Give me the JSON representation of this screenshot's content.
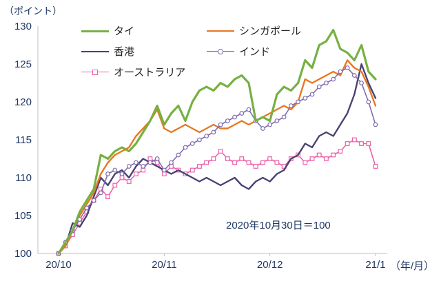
{
  "chart_data": {
    "type": "line",
    "title": "",
    "y_unit_label": "（ポイント）",
    "x_unit_label": "（年/月）",
    "annotation": "2020年10月30日＝100",
    "ylim": [
      100,
      130
    ],
    "yticks": [
      100,
      105,
      110,
      115,
      120,
      125,
      130
    ],
    "x_tick_labels": [
      "20/10",
      "20/11",
      "20/12",
      "21/1"
    ],
    "x_tick_positions": [
      0,
      15,
      30,
      45
    ],
    "n_points": 46,
    "grid": false,
    "legend_position": "top-inside",
    "colors": {
      "axis_text": "#1F3864",
      "axis_line": "#BFBFBF",
      "background": "#FFFFFF",
      "legend_text": "#222222"
    },
    "series": [
      {
        "name": "タイ",
        "color": "#76B043",
        "marker": "none",
        "width": 3.2,
        "values": [
          100,
          101.5,
          103,
          105.5,
          107,
          108.5,
          113,
          112.5,
          113.5,
          114,
          113.5,
          114.5,
          116,
          117.5,
          119.5,
          117,
          118.5,
          119.5,
          117.5,
          120,
          121.5,
          122,
          121.5,
          122.5,
          122,
          123,
          123.5,
          122.5,
          117.5,
          118,
          117.5,
          121,
          122,
          121.5,
          122.5,
          125.5,
          124.5,
          127.5,
          128,
          129.5,
          127,
          126.5,
          125.5,
          127.5,
          124,
          123
        ]
      },
      {
        "name": "シンガポール",
        "color": "#E87722",
        "marker": "none",
        "width": 2.4,
        "values": [
          100,
          101,
          103,
          105,
          106.5,
          108,
          110.5,
          112,
          113,
          113.5,
          114,
          115.5,
          116.5,
          117.5,
          119,
          116.5,
          116,
          116.5,
          117,
          116.5,
          116,
          116.5,
          117,
          116.5,
          116.5,
          117,
          117.5,
          117,
          117.5,
          118,
          118.5,
          119,
          119.5,
          119,
          120,
          123,
          122.5,
          123,
          123.5,
          124,
          123.5,
          125.5,
          124.5,
          124,
          122,
          119.5
        ]
      },
      {
        "name": "香港",
        "color": "#4A4272",
        "marker": "none",
        "width": 2.4,
        "values": [
          100,
          101,
          104,
          103.5,
          105,
          107.5,
          110,
          109,
          110.5,
          111,
          110,
          111.5,
          112.5,
          112,
          111.5,
          111,
          110.5,
          111,
          110.5,
          110,
          109.5,
          110,
          109.5,
          109,
          109.5,
          110,
          109,
          108.5,
          109.5,
          110,
          109.5,
          110.5,
          111,
          112.5,
          113,
          114.5,
          114,
          115.5,
          116,
          115.5,
          117,
          118.5,
          121,
          125,
          122.5,
          120.5
        ]
      },
      {
        "name": "インド",
        "color": "#7F6BB0",
        "marker": "circle",
        "width": 1.6,
        "values": [
          100,
          101.5,
          103,
          104.5,
          106,
          107,
          108,
          110.5,
          111,
          110.5,
          111.5,
          112,
          111.5,
          112,
          112.5,
          111,
          112,
          113,
          114,
          114.5,
          115,
          115.5,
          116,
          117,
          117.5,
          118,
          118.5,
          119,
          117.5,
          116.5,
          117,
          117.5,
          118,
          119.5,
          120,
          120.5,
          121,
          122,
          122.5,
          123,
          124,
          124.5,
          123.5,
          122.5,
          120,
          117
        ]
      },
      {
        "name": "オーストラリア",
        "color": "#EC60A8",
        "marker": "square",
        "width": 1.6,
        "values": [
          100,
          101,
          102.5,
          104,
          105.5,
          107,
          108.5,
          107.5,
          109,
          110,
          109.5,
          110.5,
          111,
          112.5,
          112,
          110.5,
          111.5,
          111,
          110.5,
          111,
          111.5,
          112,
          112.5,
          113.5,
          112.5,
          112,
          112.5,
          112,
          111.5,
          112,
          112.5,
          112,
          111.5,
          112.5,
          113,
          112,
          112.5,
          113,
          112.5,
          113,
          113.5,
          114.5,
          115,
          114.5,
          114.5,
          111.5
        ]
      }
    ],
    "draw_order": [
      4,
      2,
      1,
      3,
      0
    ]
  }
}
